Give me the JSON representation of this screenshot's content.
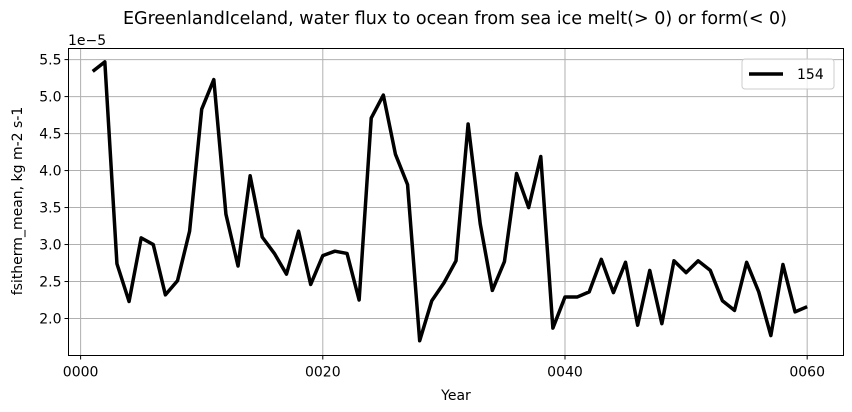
{
  "chart_data": {
    "type": "line",
    "title": "EGreenlandIceland, water flux to ocean from sea ice melt(> 0) or form(< 0)",
    "xlabel": "Year",
    "ylabel": "fsitherm_mean, kg m-2 s-1",
    "offset_label": "1e−5",
    "xlim": [
      -1,
      63
    ],
    "ylim": [
      1.5,
      5.65
    ],
    "x_ticks": [
      0,
      20,
      40,
      60
    ],
    "x_tick_labels": [
      "0000",
      "0020",
      "0040",
      "0060"
    ],
    "y_ticks": [
      2.0,
      2.5,
      3.0,
      3.5,
      4.0,
      4.5,
      5.0,
      5.5
    ],
    "y_tick_labels": [
      "2.0",
      "2.5",
      "3.0",
      "3.5",
      "4.0",
      "4.5",
      "5.0",
      "5.5"
    ],
    "grid": true,
    "legend_position": "top-right",
    "series": [
      {
        "name": "154",
        "color": "#000000",
        "x": [
          1,
          2,
          3,
          4,
          5,
          6,
          7,
          8,
          9,
          10,
          11,
          12,
          13,
          14,
          15,
          16,
          17,
          18,
          19,
          20,
          21,
          22,
          23,
          24,
          25,
          26,
          27,
          28,
          29,
          30,
          31,
          32,
          33,
          34,
          35,
          36,
          37,
          38,
          39,
          40,
          41,
          42,
          43,
          44,
          45,
          46,
          47,
          48,
          49,
          50,
          51,
          52,
          53,
          54,
          55,
          56,
          57,
          58,
          59,
          60
        ],
        "values": [
          5.34,
          5.47,
          2.74,
          2.23,
          3.09,
          3.0,
          2.32,
          2.51,
          3.18,
          4.83,
          5.23,
          3.41,
          2.71,
          3.93,
          3.1,
          2.88,
          2.6,
          3.18,
          2.46,
          2.85,
          2.91,
          2.88,
          2.25,
          4.71,
          5.02,
          4.22,
          3.81,
          1.7,
          2.24,
          2.48,
          2.78,
          4.63,
          3.28,
          2.38,
          2.77,
          3.96,
          3.5,
          4.19,
          1.87,
          2.29,
          2.29,
          2.36,
          2.8,
          2.35,
          2.76,
          1.91,
          2.65,
          1.93,
          2.78,
          2.62,
          2.78,
          2.65,
          2.24,
          2.11,
          2.76,
          2.36,
          1.77,
          2.73,
          2.09,
          2.16
        ]
      }
    ]
  }
}
